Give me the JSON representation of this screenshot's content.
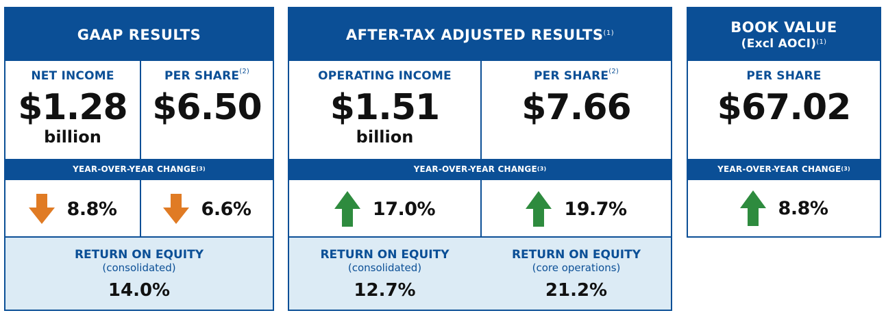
{
  "gaap": {
    "title": "GAAP RESULTS",
    "net_income": {
      "label": "NET INCOME",
      "value": "$1.28",
      "unit": "billion"
    },
    "per_share": {
      "label": "PER SHARE",
      "note": "(2)",
      "value": "$6.50"
    },
    "yoy_label": "YEAR-OVER-YEAR CHANGE",
    "yoy_note": "(3)",
    "changes": [
      {
        "direction": "down",
        "value": "8.8%",
        "icon": "arrow-down-icon"
      },
      {
        "direction": "down",
        "value": "6.6%",
        "icon": "arrow-down-icon"
      }
    ],
    "roe": {
      "title": "RETURN ON EQUITY",
      "sub": "(consolidated)",
      "value": "14.0%"
    }
  },
  "adjusted": {
    "title": "AFTER-TAX ADJUSTED RESULTS",
    "note": "(1)",
    "operating_income": {
      "label": "OPERATING INCOME",
      "value": "$1.51",
      "unit": "billion"
    },
    "per_share": {
      "label": "PER SHARE",
      "note": "(2)",
      "value": "$7.66"
    },
    "yoy_label": "YEAR-OVER-YEAR CHANGE",
    "yoy_note": "(3)",
    "changes": [
      {
        "direction": "up",
        "value": "17.0%",
        "icon": "arrow-up-icon"
      },
      {
        "direction": "up",
        "value": "19.7%",
        "icon": "arrow-up-icon"
      }
    ],
    "roe": [
      {
        "title": "RETURN ON EQUITY",
        "sub": "(consolidated)",
        "value": "12.7%"
      },
      {
        "title": "RETURN ON EQUITY",
        "sub": "(core operations)",
        "value": "21.2%"
      }
    ]
  },
  "book_value": {
    "title_line1": "BOOK VALUE",
    "title_line2": "(Excl AOCI)",
    "note": "(1)",
    "per_share": {
      "label": "PER SHARE",
      "value": "$67.02"
    },
    "yoy_label": "YEAR-OVER-YEAR CHANGE",
    "yoy_note": "(3)",
    "change": {
      "direction": "up",
      "value": "8.8%",
      "icon": "arrow-up-icon"
    }
  },
  "colors": {
    "brand_blue": "#0b4f96",
    "light_blue": "#dcebf5",
    "arrow_down": "#e07b24",
    "arrow_up": "#2e8b3e"
  }
}
